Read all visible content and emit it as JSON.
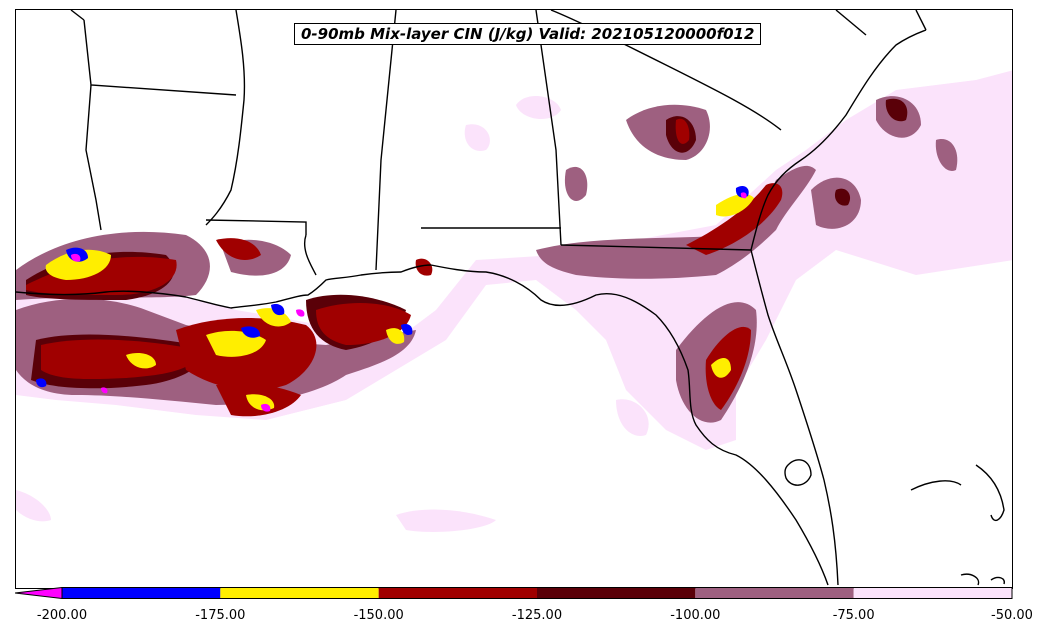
{
  "title": "0-90mb Mix-layer CIN (J/kg) Valid: 202105120000f012",
  "colorbar": {
    "extend": "min",
    "under_color": "#ff00ff",
    "bins": [
      {
        "from": -200,
        "to": -175,
        "color": "#0000ff"
      },
      {
        "from": -175,
        "to": -150,
        "color": "#ffee00"
      },
      {
        "from": -150,
        "to": -125,
        "color": "#a00000"
      },
      {
        "from": -125,
        "to": -100,
        "color": "#5a0008"
      },
      {
        "from": -100,
        "to": -75,
        "color": "#9e6080"
      },
      {
        "from": -75,
        "to": -50,
        "color": "#fbe3fb"
      }
    ],
    "tick_labels": [
      "-200.00",
      "-175.00",
      "-150.00",
      "-125.00",
      "-100.00",
      "-75.00",
      "-50.00"
    ]
  }
}
